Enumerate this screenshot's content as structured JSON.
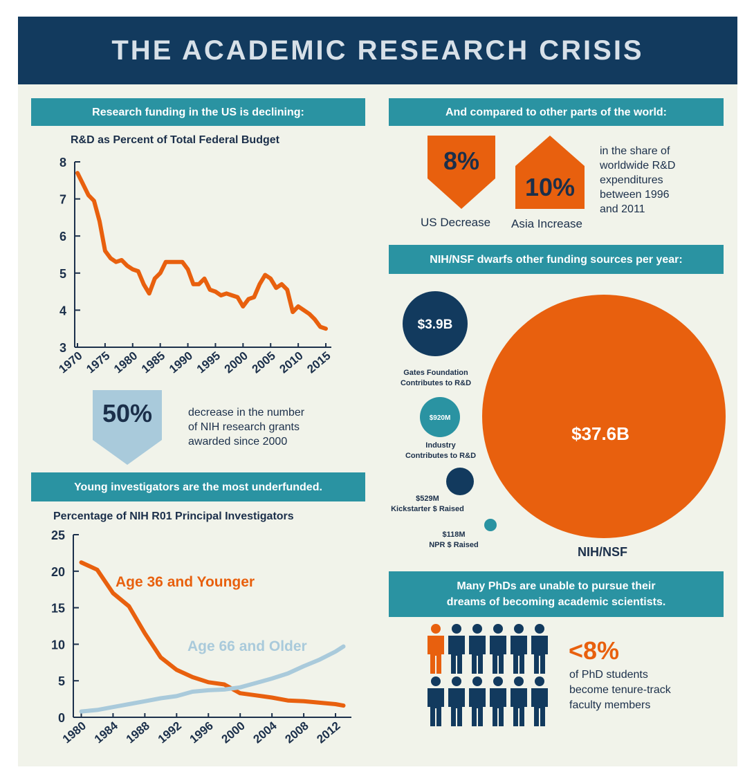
{
  "title": "THE ACADEMIC RESEARCH CRISIS",
  "colors": {
    "navy": "#123a5e",
    "teal": "#2a93a2",
    "orange": "#e8600e",
    "light_blue": "#a9cadb",
    "background": "#f1f3ea"
  },
  "sections": {
    "funding_declining": "Research funding in the US is declining:",
    "world_compare": "And compared to other parts of the world:",
    "nih_dwarfs": "NIH/NSF dwarfs other funding sources per year:",
    "young_investigators": "Young investigators are the most underfunded.",
    "phds_line1": "Many PhDs are unable to pursue their",
    "phds_line2": "dreams of becoming academic scientists."
  },
  "world": {
    "us_value": "8%",
    "us_label": "US Decrease",
    "asia_value": "10%",
    "asia_label": "Asia Increase",
    "desc_lines": [
      "in the share of",
      "worldwide R&D",
      "expenditures",
      "between 1996",
      "and 2011"
    ]
  },
  "grants": {
    "value": "50%",
    "desc_lines": [
      "decrease in the number",
      "of NIH research grants",
      "awarded since 2000"
    ]
  },
  "bubbles": [
    {
      "value": "$3.9B",
      "value_label_inside": true,
      "label_lines": [
        "Gates Foundation",
        "Contributes to R&D"
      ],
      "color": "#123a5e"
    },
    {
      "value": "$920M",
      "value_label_inside": true,
      "label_lines": [
        "Industry",
        "Contributes to R&D"
      ],
      "color": "#2a93a2"
    },
    {
      "value": "$529M",
      "value_label_inside": false,
      "label_lines": [
        "$529M",
        "Kickstarter $ Raised"
      ],
      "color": "#123a5e"
    },
    {
      "value": "$118M",
      "value_label_inside": false,
      "label_lines": [
        "$118M",
        "NPR $ Raised"
      ],
      "color": "#2a93a2"
    },
    {
      "value": "$37.6B",
      "value_label_inside": true,
      "label_lines": [
        "NIH/NSF"
      ],
      "color": "#e8600e"
    }
  ],
  "phd": {
    "value": "<8%",
    "desc_lines": [
      "of PhD students",
      "become tenure-track",
      "faculty members"
    ],
    "icons": {
      "total": 12,
      "highlighted": 1
    }
  },
  "chart_data": [
    {
      "type": "line",
      "title": "R&D as Percent of Total Federal Budget",
      "xlabel": "",
      "ylabel": "",
      "xlim": [
        1969.5,
        2016
      ],
      "ylim": [
        3,
        8
      ],
      "xticks": [
        "1970",
        "1975",
        "1980",
        "1985",
        "1990",
        "1995",
        "2000",
        "2005",
        "2010",
        "2015"
      ],
      "yticks": [
        "3",
        "4",
        "5",
        "6",
        "7",
        "8"
      ],
      "grid": false,
      "series": [
        {
          "color": "#e8600e",
          "points": [
            [
              1970,
              7.7
            ],
            [
              1971,
              7.4
            ],
            [
              1972,
              7.1
            ],
            [
              1973,
              6.95
            ],
            [
              1974,
              6.4
            ],
            [
              1975,
              5.6
            ],
            [
              1976,
              5.4
            ],
            [
              1977,
              5.3
            ],
            [
              1978,
              5.35
            ],
            [
              1979,
              5.2
            ],
            [
              1980,
              5.1
            ],
            [
              1981,
              5.05
            ],
            [
              1982,
              4.7
            ],
            [
              1983,
              4.45
            ],
            [
              1984,
              4.85
            ],
            [
              1985,
              5.0
            ],
            [
              1986,
              5.3
            ],
            [
              1987,
              5.3
            ],
            [
              1988,
              5.3
            ],
            [
              1989,
              5.3
            ],
            [
              1990,
              5.1
            ],
            [
              1991,
              4.7
            ],
            [
              1992,
              4.7
            ],
            [
              1993,
              4.85
            ],
            [
              1994,
              4.55
            ],
            [
              1995,
              4.5
            ],
            [
              1996,
              4.4
            ],
            [
              1997,
              4.45
            ],
            [
              1998,
              4.4
            ],
            [
              1999,
              4.35
            ],
            [
              2000,
              4.1
            ],
            [
              2001,
              4.3
            ],
            [
              2002,
              4.35
            ],
            [
              2003,
              4.7
            ],
            [
              2004,
              4.95
            ],
            [
              2005,
              4.85
            ],
            [
              2006,
              4.6
            ],
            [
              2007,
              4.7
            ],
            [
              2008,
              4.55
            ],
            [
              2009,
              3.95
            ],
            [
              2010,
              4.1
            ],
            [
              2011,
              4.0
            ],
            [
              2012,
              3.9
            ],
            [
              2013,
              3.75
            ],
            [
              2014,
              3.55
            ],
            [
              2015,
              3.5
            ]
          ]
        }
      ]
    },
    {
      "type": "line",
      "title": "Percentage of NIH R01 Principal Investigators",
      "xlabel": "",
      "ylabel": "",
      "xlim": [
        1979,
        2014
      ],
      "ylim": [
        0,
        25
      ],
      "xticks": [
        "1980",
        "1984",
        "1988",
        "1992",
        "1996",
        "2000",
        "2004",
        "2008",
        "2012"
      ],
      "yticks": [
        "0",
        "5",
        "10",
        "15",
        "20",
        "25"
      ],
      "grid": false,
      "series": [
        {
          "name": "Age 36 and Younger",
          "color": "#e8600e",
          "points": [
            [
              1980,
              21.2
            ],
            [
              1982,
              20.2
            ],
            [
              1984,
              17
            ],
            [
              1986,
              15.2
            ],
            [
              1988,
              11.5
            ],
            [
              1990,
              8.2
            ],
            [
              1992,
              6.5
            ],
            [
              1994,
              5.5
            ],
            [
              1996,
              4.8
            ],
            [
              1998,
              4.5
            ],
            [
              2000,
              3.3
            ],
            [
              2002,
              3.0
            ],
            [
              2004,
              2.7
            ],
            [
              2006,
              2.3
            ],
            [
              2008,
              2.2
            ],
            [
              2010,
              2.0
            ],
            [
              2012,
              1.8
            ],
            [
              2013,
              1.6
            ]
          ]
        },
        {
          "name": "Age 66 and Older",
          "color": "#a9cadb",
          "points": [
            [
              1980,
              0.8
            ],
            [
              1982,
              1.0
            ],
            [
              1984,
              1.4
            ],
            [
              1986,
              1.8
            ],
            [
              1988,
              2.2
            ],
            [
              1990,
              2.6
            ],
            [
              1992,
              2.9
            ],
            [
              1994,
              3.5
            ],
            [
              1996,
              3.7
            ],
            [
              1998,
              3.8
            ],
            [
              2000,
              4.1
            ],
            [
              2002,
              4.7
            ],
            [
              2004,
              5.3
            ],
            [
              2006,
              6.0
            ],
            [
              2008,
              7.0
            ],
            [
              2010,
              7.9
            ],
            [
              2012,
              9.0
            ],
            [
              2013,
              9.7
            ]
          ]
        }
      ]
    }
  ]
}
